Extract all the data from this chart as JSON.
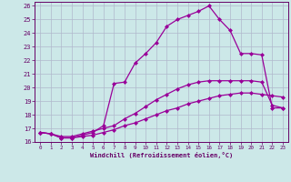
{
  "xlabel": "Windchill (Refroidissement éolien,°C)",
  "ylabel": "",
  "xlim": [
    -0.5,
    23.5
  ],
  "ylim": [
    16,
    26.3
  ],
  "xticks": [
    0,
    1,
    2,
    3,
    4,
    5,
    6,
    7,
    8,
    9,
    10,
    11,
    12,
    13,
    14,
    15,
    16,
    17,
    18,
    19,
    20,
    21,
    22,
    23
  ],
  "yticks": [
    16,
    17,
    18,
    19,
    20,
    21,
    22,
    23,
    24,
    25,
    26
  ],
  "background_color": "#cce8e8",
  "line_color": "#990099",
  "grid_color": "#b0b8cc",
  "lines": [
    {
      "x": [
        0,
        1,
        2,
        3,
        4,
        5,
        6,
        7,
        8,
        9,
        10,
        11,
        12,
        13,
        14,
        15,
        16,
        17,
        18,
        19,
        20,
        21,
        22,
        23
      ],
      "y": [
        16.7,
        16.6,
        16.3,
        16.3,
        16.4,
        16.5,
        16.7,
        16.9,
        17.2,
        17.4,
        17.7,
        18.0,
        18.3,
        18.5,
        18.8,
        19.0,
        19.2,
        19.4,
        19.5,
        19.6,
        19.6,
        19.5,
        19.4,
        19.3
      ],
      "marker": "D",
      "markersize": 2.0,
      "linewidth": 0.9
    },
    {
      "x": [
        0,
        1,
        2,
        3,
        4,
        5,
        6,
        7,
        8,
        9,
        10,
        11,
        12,
        13,
        14,
        15,
        16,
        17,
        18,
        19,
        20,
        21,
        22,
        23
      ],
      "y": [
        16.7,
        16.6,
        16.4,
        16.4,
        16.6,
        16.8,
        17.0,
        17.2,
        17.7,
        18.1,
        18.6,
        19.1,
        19.5,
        19.9,
        20.2,
        20.4,
        20.5,
        20.5,
        20.5,
        20.5,
        20.5,
        20.4,
        18.7,
        18.5
      ],
      "marker": "D",
      "markersize": 2.0,
      "linewidth": 0.9
    },
    {
      "x": [
        0,
        1,
        2,
        3,
        4,
        5,
        6,
        7,
        8,
        9,
        10,
        11,
        12,
        13,
        14,
        15,
        16,
        17,
        18,
        19,
        20,
        21,
        22,
        23
      ],
      "y": [
        16.7,
        16.6,
        16.3,
        16.3,
        16.5,
        16.7,
        17.2,
        20.3,
        20.4,
        21.8,
        22.5,
        23.3,
        24.5,
        25.0,
        25.3,
        25.6,
        26.0,
        25.0,
        24.2,
        22.5,
        22.5,
        22.4,
        18.5,
        18.5
      ],
      "marker": "D",
      "markersize": 2.0,
      "linewidth": 0.9
    }
  ]
}
